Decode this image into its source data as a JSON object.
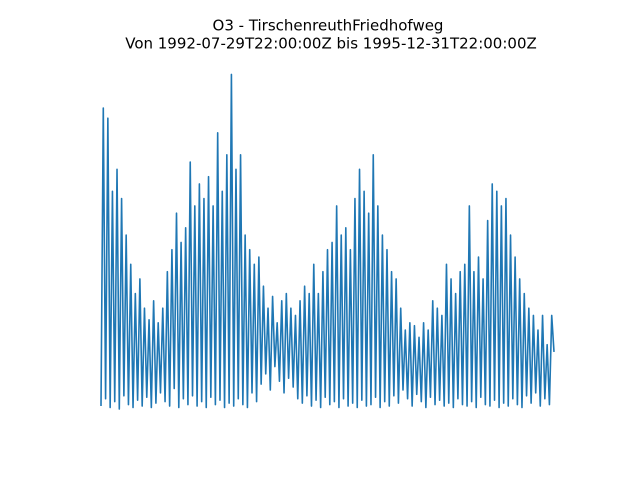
{
  "chart_data": {
    "type": "line",
    "title": "O3 - TirschenreuthFriedhofweg",
    "subtitle": "Von 1992-07-29T22:00:00Z bis 1995-12-31T22:00:00Z",
    "color": "#1f77b4",
    "ylim": [
      -11.5,
      241.5
    ],
    "values": [
      3,
      207,
      8,
      200,
      2,
      150,
      6,
      165,
      1,
      145,
      10,
      120,
      4,
      100,
      2,
      80,
      7,
      90,
      3,
      70,
      9,
      62,
      2,
      75,
      5,
      60,
      12,
      70,
      6,
      95,
      3,
      110,
      15,
      135,
      2,
      115,
      8,
      125,
      4,
      170,
      10,
      140,
      3,
      155,
      6,
      145,
      2,
      160,
      9,
      140,
      4,
      190,
      7,
      150,
      2,
      175,
      5,
      230,
      3,
      165,
      8,
      175,
      4,
      120,
      2,
      110,
      12,
      100,
      6,
      105,
      18,
      85,
      25,
      70,
      14,
      78,
      30,
      60,
      20,
      75,
      12,
      80,
      22,
      70,
      16,
      65,
      8,
      75,
      5,
      85,
      10,
      80,
      3,
      100,
      7,
      80,
      2,
      95,
      9,
      110,
      4,
      115,
      6,
      140,
      2,
      120,
      8,
      125,
      3,
      110,
      5,
      145,
      2,
      165,
      7,
      150,
      3,
      135,
      4,
      175,
      9,
      140,
      2,
      120,
      6,
      110,
      3,
      95,
      10,
      90,
      5,
      70,
      14,
      55,
      8,
      60,
      3,
      58,
      11,
      50,
      6,
      60,
      2,
      55,
      9,
      75,
      4,
      70,
      7,
      65,
      3,
      100,
      5,
      90,
      2,
      80,
      8,
      95,
      4,
      100,
      3,
      140,
      6,
      95,
      2,
      105,
      9,
      90,
      4,
      130,
      3,
      155,
      7,
      150,
      2,
      140,
      5,
      145,
      3,
      120,
      8,
      105,
      4,
      90,
      2,
      80,
      10,
      70,
      5,
      65,
      12,
      55,
      3,
      65,
      8,
      45,
      4,
      65,
      40
    ]
  }
}
